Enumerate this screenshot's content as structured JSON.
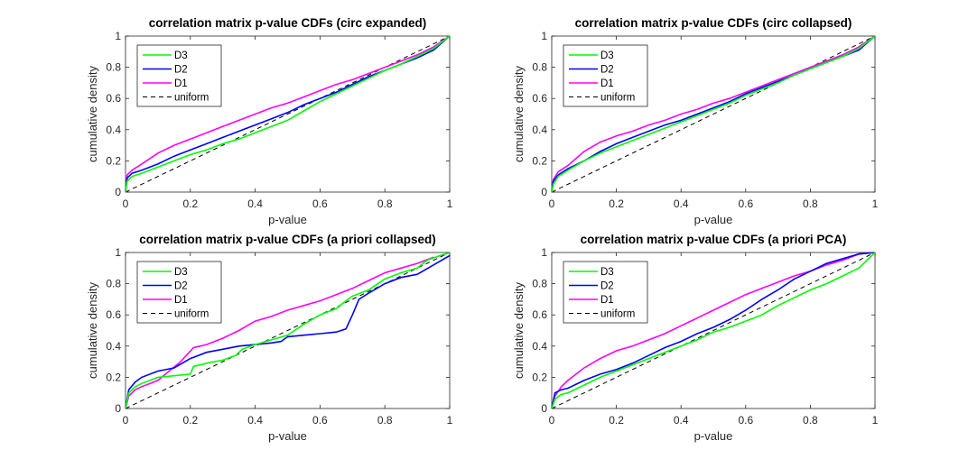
{
  "chart_data": [
    {
      "type": "line",
      "title": "correlation matrix p-value CDFs (circ expanded)",
      "xlabel": "p-value",
      "ylabel": "cumulative density",
      "xlim": [
        0,
        1
      ],
      "ylim": [
        0,
        1
      ],
      "xticks": [
        "0",
        "0.2",
        "0.4",
        "0.6",
        "0.8",
        "1"
      ],
      "yticks": [
        "0",
        "0.2",
        "0.4",
        "0.6",
        "0.8",
        "1"
      ],
      "grid": false,
      "legend_position": "top-left",
      "series": [
        {
          "name": "D3",
          "color": "#00ff00",
          "dash": false,
          "x": [
            0,
            0.005,
            0.02,
            0.05,
            0.1,
            0.15,
            0.2,
            0.25,
            0.3,
            0.35,
            0.4,
            0.45,
            0.5,
            0.55,
            0.6,
            0.65,
            0.7,
            0.75,
            0.8,
            0.85,
            0.9,
            0.95,
            1.0
          ],
          "y": [
            0,
            0.07,
            0.1,
            0.12,
            0.16,
            0.2,
            0.24,
            0.27,
            0.31,
            0.34,
            0.38,
            0.42,
            0.46,
            0.52,
            0.58,
            0.63,
            0.68,
            0.73,
            0.78,
            0.82,
            0.87,
            0.92,
            1.0
          ]
        },
        {
          "name": "D2",
          "color": "#0000ff",
          "dash": false,
          "x": [
            0,
            0.005,
            0.02,
            0.05,
            0.1,
            0.15,
            0.2,
            0.25,
            0.3,
            0.35,
            0.4,
            0.45,
            0.5,
            0.55,
            0.6,
            0.65,
            0.7,
            0.75,
            0.8,
            0.85,
            0.9,
            0.95,
            1.0
          ],
          "y": [
            0,
            0.09,
            0.12,
            0.14,
            0.18,
            0.23,
            0.27,
            0.31,
            0.35,
            0.39,
            0.43,
            0.47,
            0.51,
            0.56,
            0.6,
            0.64,
            0.69,
            0.74,
            0.78,
            0.82,
            0.86,
            0.91,
            1.0
          ]
        },
        {
          "name": "D1",
          "color": "#ff00ff",
          "dash": false,
          "x": [
            0,
            0.005,
            0.02,
            0.05,
            0.1,
            0.15,
            0.2,
            0.25,
            0.3,
            0.35,
            0.4,
            0.45,
            0.5,
            0.55,
            0.6,
            0.65,
            0.7,
            0.75,
            0.8,
            0.85,
            0.9,
            0.95,
            1.0
          ],
          "y": [
            0,
            0.11,
            0.14,
            0.18,
            0.25,
            0.3,
            0.34,
            0.38,
            0.42,
            0.46,
            0.5,
            0.54,
            0.57,
            0.61,
            0.65,
            0.69,
            0.72,
            0.76,
            0.8,
            0.84,
            0.88,
            0.93,
            1.0
          ]
        },
        {
          "name": "uniform",
          "color": "#000000",
          "dash": true,
          "x": [
            0,
            1
          ],
          "y": [
            0,
            1
          ]
        }
      ]
    },
    {
      "type": "line",
      "title": "correlation matrix p-value CDFs (circ collapsed)",
      "xlabel": "p-value",
      "ylabel": "cumulative density",
      "xlim": [
        0,
        1
      ],
      "ylim": [
        0,
        1
      ],
      "xticks": [
        "0",
        "0.2",
        "0.4",
        "0.6",
        "0.8",
        "1"
      ],
      "yticks": [
        "0",
        "0.2",
        "0.4",
        "0.6",
        "0.8",
        "1"
      ],
      "grid": false,
      "legend_position": "top-left",
      "series": [
        {
          "name": "D3",
          "color": "#00ff00",
          "dash": false,
          "x": [
            0,
            0.005,
            0.02,
            0.05,
            0.1,
            0.15,
            0.2,
            0.25,
            0.3,
            0.35,
            0.4,
            0.45,
            0.5,
            0.55,
            0.6,
            0.65,
            0.7,
            0.75,
            0.8,
            0.85,
            0.9,
            0.95,
            1.0
          ],
          "y": [
            0,
            0.05,
            0.1,
            0.14,
            0.2,
            0.25,
            0.29,
            0.33,
            0.37,
            0.41,
            0.45,
            0.49,
            0.53,
            0.57,
            0.62,
            0.66,
            0.7,
            0.75,
            0.79,
            0.83,
            0.87,
            0.92,
            1.0
          ]
        },
        {
          "name": "D2",
          "color": "#0000ff",
          "dash": false,
          "x": [
            0,
            0.005,
            0.02,
            0.05,
            0.1,
            0.15,
            0.2,
            0.25,
            0.3,
            0.35,
            0.4,
            0.45,
            0.5,
            0.55,
            0.6,
            0.65,
            0.7,
            0.75,
            0.8,
            0.85,
            0.9,
            0.95,
            1.0
          ],
          "y": [
            0,
            0.07,
            0.11,
            0.15,
            0.2,
            0.26,
            0.31,
            0.35,
            0.39,
            0.43,
            0.46,
            0.5,
            0.54,
            0.58,
            0.63,
            0.67,
            0.71,
            0.75,
            0.79,
            0.83,
            0.87,
            0.91,
            1.0
          ]
        },
        {
          "name": "D1",
          "color": "#ff00ff",
          "dash": false,
          "x": [
            0,
            0.005,
            0.02,
            0.05,
            0.1,
            0.15,
            0.2,
            0.25,
            0.3,
            0.35,
            0.4,
            0.45,
            0.5,
            0.55,
            0.6,
            0.65,
            0.7,
            0.75,
            0.8,
            0.85,
            0.9,
            0.95,
            1.0
          ],
          "y": [
            0,
            0.08,
            0.13,
            0.17,
            0.26,
            0.32,
            0.36,
            0.39,
            0.43,
            0.46,
            0.5,
            0.53,
            0.57,
            0.6,
            0.64,
            0.68,
            0.72,
            0.76,
            0.8,
            0.84,
            0.88,
            0.93,
            1.0
          ]
        },
        {
          "name": "uniform",
          "color": "#000000",
          "dash": true,
          "x": [
            0,
            1
          ],
          "y": [
            0,
            1
          ]
        }
      ]
    },
    {
      "type": "line",
      "title": "correlation matrix p-value CDFs (a priori collapsed)",
      "xlabel": "p-value",
      "ylabel": "cumulative density",
      "xlim": [
        0,
        1
      ],
      "ylim": [
        0,
        1
      ],
      "xticks": [
        "0",
        "0.2",
        "0.4",
        "0.6",
        "0.8",
        "1"
      ],
      "yticks": [
        "0",
        "0.2",
        "0.4",
        "0.6",
        "0.8",
        "1"
      ],
      "grid": false,
      "legend_position": "top-left",
      "series": [
        {
          "name": "D3",
          "color": "#00ff00",
          "dash": false,
          "x": [
            0,
            0.01,
            0.03,
            0.05,
            0.1,
            0.15,
            0.2,
            0.21,
            0.25,
            0.3,
            0.34,
            0.36,
            0.4,
            0.45,
            0.5,
            0.55,
            0.6,
            0.65,
            0.68,
            0.7,
            0.75,
            0.8,
            0.85,
            0.9,
            0.93,
            0.97,
            1.0
          ],
          "y": [
            0,
            0.1,
            0.14,
            0.16,
            0.2,
            0.21,
            0.22,
            0.27,
            0.29,
            0.31,
            0.34,
            0.38,
            0.41,
            0.44,
            0.47,
            0.54,
            0.6,
            0.64,
            0.69,
            0.72,
            0.76,
            0.83,
            0.87,
            0.9,
            0.95,
            0.98,
            1.0
          ]
        },
        {
          "name": "D2",
          "color": "#0000ff",
          "dash": false,
          "x": [
            0,
            0.01,
            0.03,
            0.05,
            0.1,
            0.15,
            0.2,
            0.25,
            0.3,
            0.35,
            0.4,
            0.45,
            0.48,
            0.5,
            0.55,
            0.6,
            0.65,
            0.68,
            0.7,
            0.72,
            0.75,
            0.8,
            0.85,
            0.9,
            0.95,
            1.0
          ],
          "y": [
            0,
            0.12,
            0.17,
            0.2,
            0.24,
            0.26,
            0.32,
            0.36,
            0.38,
            0.4,
            0.41,
            0.42,
            0.43,
            0.46,
            0.47,
            0.48,
            0.49,
            0.51,
            0.6,
            0.7,
            0.74,
            0.8,
            0.84,
            0.86,
            0.92,
            0.98
          ]
        },
        {
          "name": "D1",
          "color": "#ff00ff",
          "dash": false,
          "x": [
            0,
            0.01,
            0.03,
            0.05,
            0.1,
            0.14,
            0.17,
            0.21,
            0.25,
            0.3,
            0.35,
            0.4,
            0.45,
            0.5,
            0.55,
            0.6,
            0.65,
            0.7,
            0.75,
            0.8,
            0.85,
            0.9,
            0.95
          ],
          "y": [
            0,
            0.08,
            0.12,
            0.14,
            0.18,
            0.25,
            0.3,
            0.39,
            0.41,
            0.45,
            0.5,
            0.56,
            0.59,
            0.63,
            0.66,
            0.69,
            0.73,
            0.77,
            0.82,
            0.87,
            0.9,
            0.93,
            0.97
          ]
        },
        {
          "name": "uniform",
          "color": "#000000",
          "dash": true,
          "x": [
            0,
            1
          ],
          "y": [
            0,
            1
          ]
        }
      ]
    },
    {
      "type": "line",
      "title": "correlation matrix p-value CDFs (a priori PCA)",
      "xlabel": "p-value",
      "ylabel": "cumulative density",
      "xlim": [
        0,
        1
      ],
      "ylim": [
        0,
        1
      ],
      "xticks": [
        "0",
        "0.2",
        "0.4",
        "0.6",
        "0.8",
        "1"
      ],
      "yticks": [
        "0",
        "0.2",
        "0.4",
        "0.6",
        "0.8",
        "1"
      ],
      "grid": false,
      "legend_position": "top-left",
      "series": [
        {
          "name": "D3",
          "color": "#00ff00",
          "dash": false,
          "x": [
            0,
            0.01,
            0.03,
            0.05,
            0.1,
            0.15,
            0.2,
            0.25,
            0.3,
            0.35,
            0.4,
            0.45,
            0.5,
            0.55,
            0.6,
            0.65,
            0.7,
            0.75,
            0.8,
            0.85,
            0.9,
            0.95,
            1.0
          ],
          "y": [
            0,
            0.06,
            0.09,
            0.1,
            0.15,
            0.2,
            0.24,
            0.28,
            0.32,
            0.36,
            0.4,
            0.44,
            0.49,
            0.52,
            0.56,
            0.6,
            0.66,
            0.71,
            0.76,
            0.8,
            0.85,
            0.9,
            1.0
          ]
        },
        {
          "name": "D2",
          "color": "#0000ff",
          "dash": false,
          "x": [
            0,
            0.01,
            0.03,
            0.05,
            0.1,
            0.15,
            0.2,
            0.25,
            0.3,
            0.35,
            0.4,
            0.45,
            0.5,
            0.55,
            0.6,
            0.65,
            0.7,
            0.75,
            0.8,
            0.85,
            0.9,
            0.95,
            1.0
          ],
          "y": [
            0,
            0.1,
            0.12,
            0.13,
            0.18,
            0.22,
            0.25,
            0.29,
            0.34,
            0.39,
            0.43,
            0.48,
            0.52,
            0.57,
            0.63,
            0.7,
            0.76,
            0.83,
            0.88,
            0.93,
            0.96,
            0.99,
            1.0
          ]
        },
        {
          "name": "D1",
          "color": "#ff00ff",
          "dash": false,
          "x": [
            0,
            0.01,
            0.03,
            0.05,
            0.1,
            0.15,
            0.2,
            0.25,
            0.3,
            0.35,
            0.4,
            0.45,
            0.5,
            0.55,
            0.6,
            0.65,
            0.7,
            0.75,
            0.8,
            0.85,
            0.9,
            0.95,
            1.0
          ],
          "y": [
            0,
            0.08,
            0.14,
            0.18,
            0.26,
            0.32,
            0.37,
            0.4,
            0.44,
            0.48,
            0.53,
            0.58,
            0.63,
            0.68,
            0.73,
            0.77,
            0.81,
            0.85,
            0.88,
            0.92,
            0.95,
            0.99,
            1.0
          ]
        },
        {
          "name": "uniform",
          "color": "#000000",
          "dash": true,
          "x": [
            0,
            1
          ],
          "y": [
            0,
            1
          ]
        }
      ]
    }
  ]
}
